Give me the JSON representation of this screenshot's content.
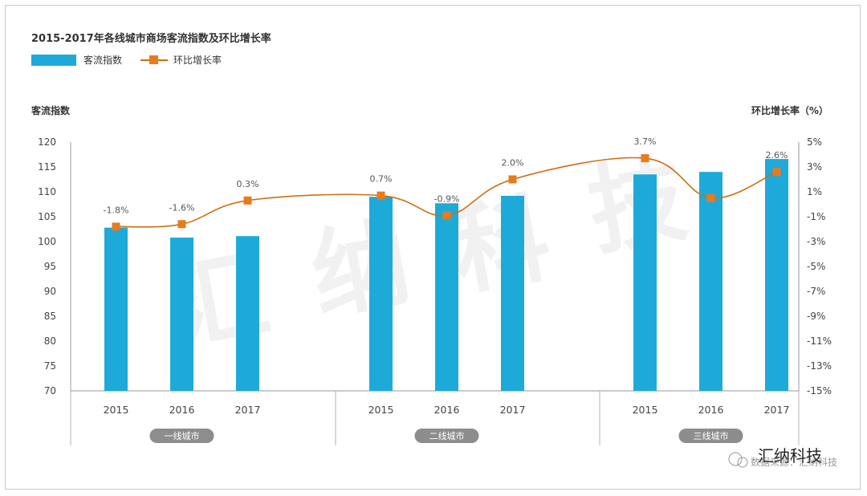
{
  "chart_data": {
    "type": "bar",
    "title": "2015-2017年各线城市商场客流指数及环比增长率",
    "legend": [
      "客流指数",
      "环比增长率"
    ],
    "ylabel_left": "客流指数",
    "ylabel_right": "环比增长率（%）",
    "ylim_left": [
      70,
      120
    ],
    "ylim_right": [
      -15,
      5
    ],
    "yticks_left": [
      "70",
      "75",
      "80",
      "85",
      "90",
      "95",
      "100",
      "105",
      "110",
      "115",
      "120"
    ],
    "yticks_right": [
      "-15%",
      "-13%",
      "-11%",
      "-9%",
      "-7%",
      "-5%",
      "-3%",
      "-1%",
      "1%",
      "3%",
      "5%"
    ],
    "groups": [
      {
        "name": "一线城市",
        "years": [
          "2015",
          "2016",
          "2017"
        ],
        "index": [
          102.8,
          100.8,
          101.1
        ],
        "growth": [
          -1.8,
          -1.6,
          0.3
        ],
        "growth_labels": [
          "-1.8%",
          "-1.6%",
          "0.3%"
        ]
      },
      {
        "name": "二线城市",
        "years": [
          "2015",
          "2016",
          "2017"
        ],
        "index": [
          109.0,
          107.7,
          109.2
        ],
        "growth": [
          0.7,
          -0.9,
          2.0
        ],
        "growth_labels": [
          "0.7%",
          "-0.9%",
          "2.0%"
        ]
      },
      {
        "name": "三线城市",
        "years": [
          "2015",
          "2016",
          "2017"
        ],
        "index": [
          113.5,
          114.0,
          116.6
        ],
        "growth": [
          3.7,
          0.5,
          2.6
        ],
        "growth_labels": [
          "3.7%",
          "",
          "2.6%"
        ]
      }
    ],
    "colors": {
      "bar": "#1eaad8",
      "line": "#cc6f14",
      "marker": "#e87b1c",
      "group_pill": "#8d8d8d"
    }
  },
  "watermark": {
    "text": "汇纳科技",
    "logo_text": "汇纳科技",
    "logo_sub": "数据来源：汇纳科技"
  }
}
